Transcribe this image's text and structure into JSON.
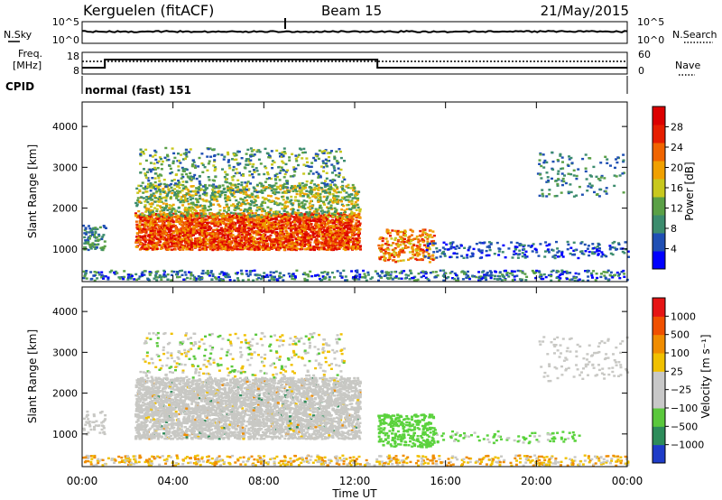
{
  "header": {
    "station": "Kerguelen (fitACF)",
    "beam": "Beam 15",
    "date": "21/May/2015"
  },
  "noise_panel": {
    "left_label": "N.Sky",
    "right_label": "N.Search",
    "left_ticks": [
      "10^5",
      "10^0"
    ],
    "right_ticks": [
      "10^5",
      "10^0"
    ]
  },
  "freq_panel": {
    "left_label_1": "Freq.",
    "left_label_2": "[MHz]",
    "right_label": "Nave",
    "left_ticks": [
      "18",
      "8"
    ],
    "right_ticks": [
      "60",
      "0"
    ]
  },
  "cpid": {
    "label": "CPID",
    "value": "normal (fast) 151"
  },
  "chart_data": [
    {
      "type": "heatmap",
      "name": "power",
      "ylabel": "Slant Range [km]",
      "yticks": [
        "1000",
        "2000",
        "3000",
        "4000"
      ],
      "ylim": [
        200,
        4600
      ],
      "xlim": [
        "00:00",
        "24:00"
      ],
      "colorbar": {
        "label": "Power [dB]",
        "ticks": [
          "4",
          "8",
          "12",
          "16",
          "20",
          "24",
          "28"
        ],
        "range": [
          0,
          30
        ],
        "colors": [
          "#0000ff",
          "#1f4fb4",
          "#3c8c6e",
          "#5aa046",
          "#c8c81e",
          "#f0a000",
          "#f06400",
          "#e61e00",
          "#dc0000"
        ]
      }
    },
    {
      "type": "heatmap",
      "name": "velocity",
      "ylabel": "Slant Range [km]",
      "yticks": [
        "1000",
        "2000",
        "3000",
        "4000"
      ],
      "ylim": [
        200,
        4600
      ],
      "xlim": [
        "00:00",
        "24:00"
      ],
      "colorbar": {
        "label": "Velocity [m s⁻¹]",
        "ticks": [
          "1000",
          "500",
          "100",
          "25",
          "−25",
          "−100",
          "−500",
          "−1000"
        ],
        "colors": [
          "#1e3cc8",
          "#2d8c5a",
          "#5ac83c",
          "#c8c8c8",
          "#c8c8c8",
          "#f0c000",
          "#f08c00",
          "#f05000",
          "#e61414"
        ]
      }
    }
  ],
  "time_axis": {
    "ticks": [
      "00:00",
      "04:00",
      "08:00",
      "12:00",
      "16:00",
      "20:00",
      "00:00"
    ],
    "label": "Time UT"
  },
  "colors": {
    "gray_scatter": "#c8c8c4",
    "green_scatter": "#5ad23c"
  }
}
